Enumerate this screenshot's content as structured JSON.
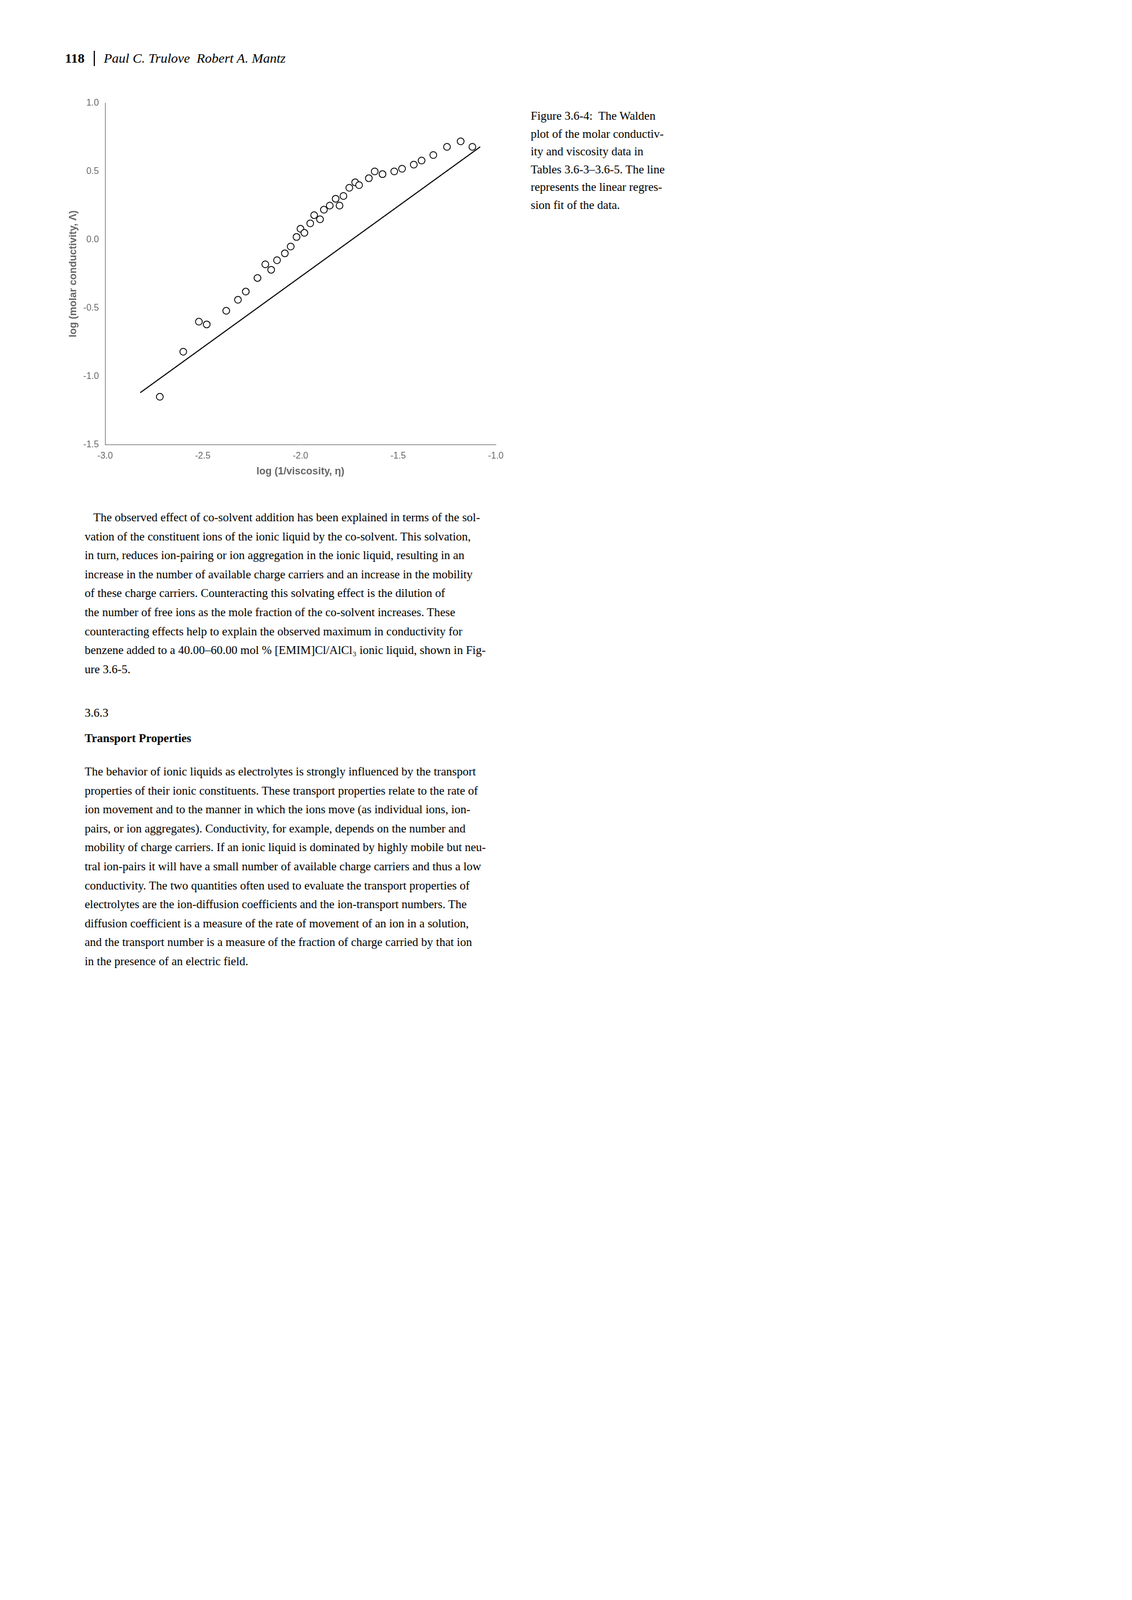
{
  "chart_data": {
    "type": "scatter",
    "xlabel": "log (1/viscosity, η)",
    "ylabel": "log (molar conductivity, Λ)",
    "series": [
      {
        "type": "scatter",
        "marker": "hollow",
        "color": "black",
        "x": [
          -2.72,
          -2.6,
          -2.52,
          -2.48,
          -2.38,
          -2.32,
          -2.28,
          -2.22,
          -2.18,
          -2.15,
          -2.12,
          -2.08,
          -2.05,
          -2.02,
          -2.0,
          -1.98,
          -1.95,
          -1.93,
          -1.9,
          -1.88,
          -1.85,
          -1.82,
          -1.8,
          -1.78,
          -1.75,
          -1.72,
          -1.7,
          -1.65,
          -1.62,
          -1.58,
          -1.52,
          -1.48,
          -1.42,
          -1.38,
          -1.32,
          -1.25,
          -1.18,
          -1.12
        ],
        "values": [
          -1.15,
          -0.82,
          -0.6,
          -0.62,
          -0.52,
          -0.44,
          -0.38,
          -0.28,
          -0.18,
          -0.22,
          -0.15,
          -0.1,
          -0.05,
          0.02,
          0.08,
          0.05,
          0.12,
          0.18,
          0.15,
          0.22,
          0.25,
          0.3,
          0.25,
          0.32,
          0.38,
          0.42,
          0.4,
          0.45,
          0.5,
          0.48,
          0.5,
          0.52,
          0.55,
          0.58,
          0.62,
          0.68,
          0.72,
          0.68
        ]
      },
      {
        "type": "line",
        "line_style": "solid",
        "color": "black",
        "x": [
          -2.82,
          -1.08
        ],
        "values": [
          -1.12,
          0.68
        ]
      }
    ],
    "xlim": [
      -3.0,
      -1.0
    ],
    "ylim": [
      -1.5,
      1.0
    ],
    "xticks": [
      {
        "value": -3.0,
        "label": "-3.0"
      },
      -2.5,
      {
        "value": -2.0,
        "label": "-2.0"
      },
      -1.5,
      {
        "value": -1.0,
        "label": "-1.0"
      }
    ],
    "yticks": [
      -1.5,
      {
        "value": -1.0,
        "label": "-1.0"
      },
      -0.5,
      {
        "value": 0.0,
        "label": "0.0"
      },
      0.5,
      {
        "value": 1.0,
        "label": "1.0"
      }
    ],
    "grid": false,
    "annotations": [
      "118",
      "Paul C. Trulove  Robert A. Mantz",
      "Figure 3.6-4:  The Walden\nplot of the molar conductiv-\nity and viscosity data in\nTables 3.6-3–3.6-5. The line\nrepresents the linear regres-\nsion fit of the data.",
      "   The observed effect of co-solvent addition has been explained in terms of the sol-\nvation of the constituent ions of the ionic liquid by the co-solvent. This solvation,\nin turn, reduces ion-pairing or ion aggregation in the ionic liquid, resulting in an\nincrease in the number of available charge carriers and an increase in the mobility\nof these charge carriers. Counteracting this solvating effect is the dilution of\nthe number of free ions as the mole fraction of the co-solvent increases. These\ncounteracting effects help to explain the observed maximum in conductivity for\nbenzene added to a 40.00–60.00 mol % [EMIM]Cl/AlCl₃ ionic liquid, shown in Fig-\nure 3.6-5.",
      "3.6.3",
      "Transport Properties",
      "The behavior of ionic liquids as electrolytes is strongly influenced by the transport\nproperties of their ionic constituents. These transport properties relate to the rate of\nion movement and to the manner in which the ions move (as individual ions, ion-\npairs, or ion aggregates). Conductivity, for example, depends on the number and\nmobility of charge carriers. If an ionic liquid is dominated by highly mobile but neu-\ntral ion-pairs it will have a small number of available charge carriers and thus a low\nconductivity. The two quantities often used to evaluate the transport properties of\nelectrolytes are the ion-diffusion coefficients and the ion-transport numbers. The\ndiffusion coefficient is a measure of the rate of movement of an ion in a solution,\nand the transport number is a measure of the fraction of charge carried by that ion\nin the presence of an electric field."
    ]
  }
}
